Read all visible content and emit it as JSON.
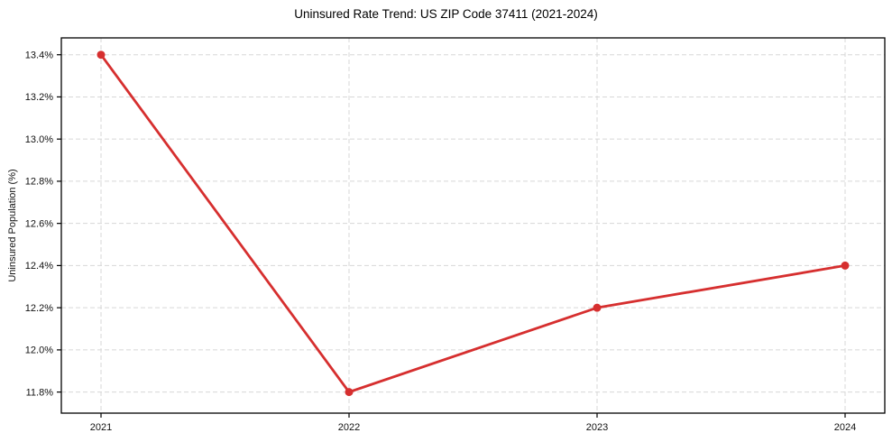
{
  "chart_data": {
    "type": "line",
    "title": "Uninsured Rate Trend: US ZIP Code 37411 (2021-2024)",
    "ylabel": "Uninsured Population (%)",
    "x": [
      2021,
      2022,
      2023,
      2024
    ],
    "values": [
      13.4,
      11.8,
      12.2,
      12.4
    ],
    "xticks": [
      2021,
      2022,
      2023,
      2024
    ],
    "xtick_labels": [
      "2021",
      "2022",
      "2023",
      "2024"
    ],
    "yticks": [
      11.8,
      12.0,
      12.2,
      12.4,
      12.6,
      12.8,
      13.0,
      13.2,
      13.4
    ],
    "ytick_labels": [
      "11.8%",
      "12.0%",
      "12.2%",
      "12.4%",
      "12.6%",
      "12.8%",
      "13.0%",
      "13.2%",
      "13.4%"
    ],
    "ylim": [
      11.7,
      13.48
    ],
    "xlim": [
      2020.84,
      2024.16
    ],
    "grid": true,
    "grid_style": "dashed",
    "legend": false,
    "line_color": "#d62f2f",
    "grid_color": "#d7d7d7",
    "frame_color": "#000000",
    "marker": "circle"
  }
}
